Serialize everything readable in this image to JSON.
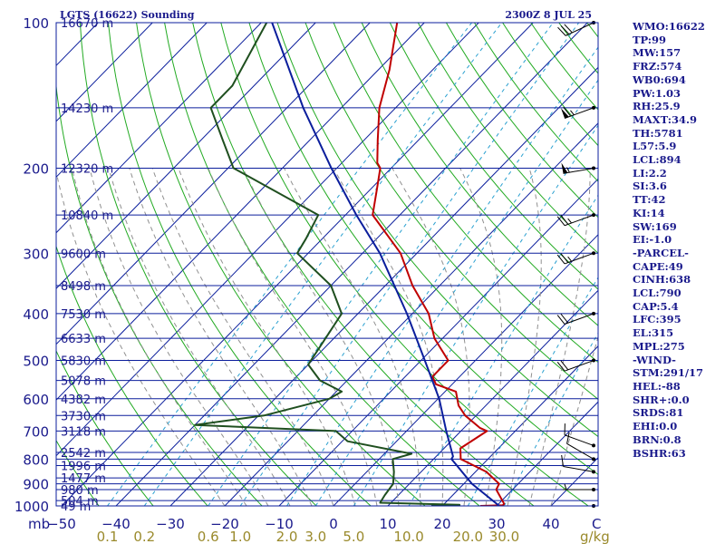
{
  "header": {
    "station": "LGTS (16622) Sounding",
    "valid": "2300Z  8 JUL 25"
  },
  "chart_data": {
    "type": "line",
    "diagram": "skew-T log-P",
    "y_axis": {
      "unit": "mb",
      "range": [
        1000,
        100
      ],
      "scale": "log",
      "ticks": [
        1000,
        900,
        800,
        700,
        600,
        500,
        400,
        300,
        200,
        100
      ]
    },
    "x_axis": {
      "unit": "C",
      "ticks": [
        -50,
        -40,
        -30,
        -20,
        -10,
        0,
        10,
        20,
        30,
        40
      ],
      "tick_labels": [
        "−50",
        "−40",
        "−30",
        "−20",
        "−10",
        "0",
        "10",
        "20",
        "30",
        "40"
      ]
    },
    "unit_labels": {
      "pressure": "mb",
      "temperature": "C",
      "mixing_ratio": "g/kg"
    },
    "mixing_ratio_labels": [
      "0.1",
      "0.2",
      "0.6",
      "1.0",
      "2.0",
      "3.0",
      "5.0",
      "10.0",
      "20.0",
      "30.0"
    ],
    "height_levels": [
      {
        "p": 1000,
        "label": "49 m"
      },
      {
        "p": 975,
        "label": "504 m"
      },
      {
        "p": 925,
        "label": "980 m"
      },
      {
        "p": 875,
        "label": "1477 m"
      },
      {
        "p": 825,
        "label": "1996 m"
      },
      {
        "p": 775,
        "label": "2542 m"
      },
      {
        "p": 700,
        "label": "3118 m"
      },
      {
        "p": 650,
        "label": "3730 m"
      },
      {
        "p": 600,
        "label": "4382 m"
      },
      {
        "p": 550,
        "label": "5078 m"
      },
      {
        "p": 500,
        "label": "5830 m"
      },
      {
        "p": 450,
        "label": "6633 m"
      },
      {
        "p": 400,
        "label": "7530 m"
      },
      {
        "p": 350,
        "label": "8498 m"
      },
      {
        "p": 300,
        "label": "9600 m"
      },
      {
        "p": 250,
        "label": "10840 m"
      },
      {
        "p": 200,
        "label": "12320 m"
      },
      {
        "p": 150,
        "label": "14230 m"
      },
      {
        "p": 100,
        "label": "16670 m"
      }
    ],
    "series": [
      {
        "key": "temperature",
        "color": "#c00000",
        "points": [
          {
            "p": 1000,
            "t": 27.0
          },
          {
            "p": 997,
            "t": 31.0
          },
          {
            "p": 990,
            "t": 31.0
          },
          {
            "p": 925,
            "t": 27.0
          },
          {
            "p": 900,
            "t": 26.5
          },
          {
            "p": 850,
            "t": 22.0
          },
          {
            "p": 800,
            "t": 15.0
          },
          {
            "p": 760,
            "t": 13.0
          },
          {
            "p": 700,
            "t": 14.8
          },
          {
            "p": 690,
            "t": 13.0
          },
          {
            "p": 650,
            "t": 8.0
          },
          {
            "p": 620,
            "t": 5.0
          },
          {
            "p": 580,
            "t": 2.0
          },
          {
            "p": 560,
            "t": -3.0
          },
          {
            "p": 540,
            "t": -5.0
          },
          {
            "p": 500,
            "t": -5.0
          },
          {
            "p": 450,
            "t": -11.5
          },
          {
            "p": 400,
            "t": -17.0
          },
          {
            "p": 350,
            "t": -25.0
          },
          {
            "p": 300,
            "t": -33.0
          },
          {
            "p": 250,
            "t": -45.0
          },
          {
            "p": 220,
            "t": -49.0
          },
          {
            "p": 200,
            "t": -52.0
          },
          {
            "p": 195,
            "t": -53.5
          },
          {
            "p": 175,
            "t": -57.5
          },
          {
            "p": 150,
            "t": -63.0
          },
          {
            "p": 125,
            "t": -68.0
          },
          {
            "p": 100,
            "t": -75.0
          }
        ]
      },
      {
        "key": "dewpoint",
        "color": "#1f4f1f",
        "points": [
          {
            "p": 1000,
            "t": 18.0
          },
          {
            "p": 995,
            "t": 23.0
          },
          {
            "p": 985,
            "t": 8.0
          },
          {
            "p": 950,
            "t": 7.5
          },
          {
            "p": 900,
            "t": 7.0
          },
          {
            "p": 850,
            "t": 5.0
          },
          {
            "p": 800,
            "t": 2.5
          },
          {
            "p": 780,
            "t": 5.0
          },
          {
            "p": 735,
            "t": -9.0
          },
          {
            "p": 700,
            "t": -13.0
          },
          {
            "p": 680,
            "t": -40.0
          },
          {
            "p": 650,
            "t": -29.0
          },
          {
            "p": 600,
            "t": -20.0
          },
          {
            "p": 580,
            "t": -19.0
          },
          {
            "p": 550,
            "t": -25.0
          },
          {
            "p": 510,
            "t": -30.0
          },
          {
            "p": 470,
            "t": -31.0
          },
          {
            "p": 400,
            "t": -33.0
          },
          {
            "p": 350,
            "t": -40.0
          },
          {
            "p": 300,
            "t": -52.0
          },
          {
            "p": 280,
            "t": -53.0
          },
          {
            "p": 250,
            "t": -55.0
          },
          {
            "p": 200,
            "t": -79.0
          },
          {
            "p": 175,
            "t": -86.0
          },
          {
            "p": 150,
            "t": -94.0
          },
          {
            "p": 135,
            "t": -94.0
          },
          {
            "p": 100,
            "t": -99.0
          }
        ]
      },
      {
        "key": "parcel",
        "color": "#0b1e9c",
        "points": [
          {
            "p": 1000,
            "t": 30.5
          },
          {
            "p": 900,
            "t": 21.5
          },
          {
            "p": 800,
            "t": 13.3
          },
          {
            "p": 790,
            "t": 13.1
          },
          {
            "p": 700,
            "t": 7.3
          },
          {
            "p": 600,
            "t": 0.2
          },
          {
            "p": 500,
            "t": -9.3
          },
          {
            "p": 400,
            "t": -21.0
          },
          {
            "p": 300,
            "t": -36.8
          },
          {
            "p": 250,
            "t": -48.0
          },
          {
            "p": 200,
            "t": -61.0
          },
          {
            "p": 150,
            "t": -77.0
          },
          {
            "p": 100,
            "t": -98.0
          }
        ]
      }
    ],
    "wind_barbs": [
      {
        "p": 1000,
        "dir": 90,
        "kt": 0
      },
      {
        "p": 925,
        "dir": 270,
        "kt": 5
      },
      {
        "p": 850,
        "dir": 280,
        "kt": 10
      },
      {
        "p": 800,
        "dir": 300,
        "kt": 10
      },
      {
        "p": 750,
        "dir": 290,
        "kt": 10
      },
      {
        "p": 500,
        "dir": 250,
        "kt": 20
      },
      {
        "p": 400,
        "dir": 250,
        "kt": 20
      },
      {
        "p": 300,
        "dir": 250,
        "kt": 25
      },
      {
        "p": 250,
        "dir": 250,
        "kt": 25
      },
      {
        "p": 200,
        "dir": 260,
        "kt": 55
      },
      {
        "p": 150,
        "dir": 250,
        "kt": 65
      },
      {
        "p": 100,
        "dir": 245,
        "kt": 30
      }
    ],
    "colors": {
      "isobar": "#0b1e9c",
      "isotherm": "#0b1e9c",
      "dry_adiabat": "#22aa22",
      "moist_adiabat": "#909090",
      "mixing_ratio": "#2aa0d0",
      "temperature": "#c00000",
      "dewpoint": "#1f4f1f",
      "parcel": "#0b1e9c"
    }
  },
  "indices": [
    "WMO:16622",
    "TP:99",
    "MW:157",
    "FRZ:574",
    "WB0:694",
    "PW:1.03",
    "RH:25.9",
    "MAXT:34.9",
    "TH:5781",
    "L57:5.9",
    "LCL:894",
    "LI:2.2",
    "SI:3.6",
    "TT:42",
    "KI:14",
    "SW:169",
    "EI:-1.0",
    "-PARCEL-",
    "CAPE:49",
    "CINH:638",
    "LCL:790",
    "CAP:5.4",
    "LFC:395",
    "EL:315",
    "MPL:275",
    "-WIND-",
    "STM:291/17",
    "HEL:-88",
    "SHR+:0.0",
    "SRDS:81",
    "EHI:0.0",
    "BRN:0.8",
    "BSHR:63"
  ]
}
